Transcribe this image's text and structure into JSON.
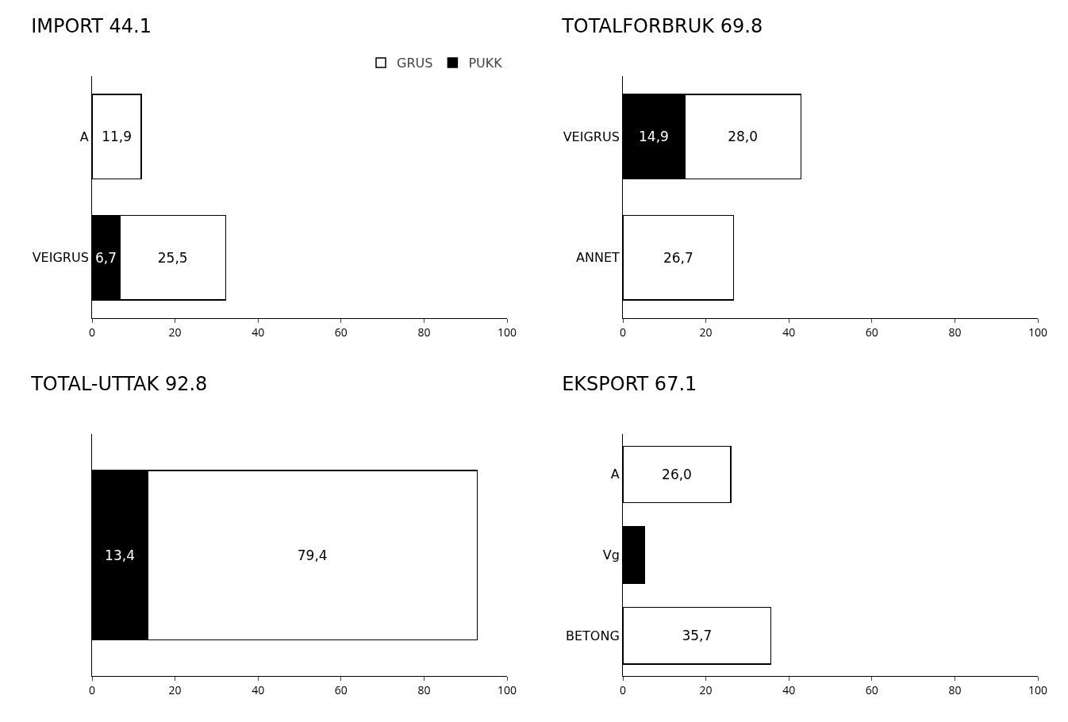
{
  "chart_data": [
    {
      "type": "bar",
      "orientation": "horizontal",
      "stacked": true,
      "title": "IMPORT 44.1",
      "legend": "top right",
      "categories": [
        "A",
        "VEIGRUS"
      ],
      "xlim": [
        0,
        100
      ],
      "xticks": [
        0,
        20,
        40,
        60,
        80,
        100
      ],
      "series": [
        {
          "name": "PUKK",
          "color": "#000000",
          "values": [
            null,
            6.7
          ],
          "value_labels": [
            null,
            "6,7"
          ]
        },
        {
          "name": "GRUS",
          "color": "#ffffff",
          "values": [
            11.9,
            25.5
          ],
          "value_labels": [
            "11,9",
            "25,5"
          ]
        }
      ]
    },
    {
      "type": "bar",
      "orientation": "horizontal",
      "stacked": true,
      "title": "TOTALFORBRUK 69.8",
      "categories": [
        "VEIGRUS",
        "ANNET"
      ],
      "xlim": [
        0,
        100
      ],
      "xticks": [
        0,
        20,
        40,
        60,
        80,
        100
      ],
      "series": [
        {
          "color": "#000000",
          "values": [
            14.9,
            null
          ],
          "value_labels": [
            "14,9",
            null
          ]
        },
        {
          "color": "#ffffff",
          "values": [
            28.0,
            26.7
          ],
          "value_labels": [
            "28,0",
            "26,7"
          ]
        }
      ]
    },
    {
      "type": "bar",
      "orientation": "horizontal",
      "stacked": true,
      "title": "TOTAL-UTTAK 92.8",
      "categories": [
        null
      ],
      "xlim": [
        0,
        100
      ],
      "xticks": [
        0,
        20,
        40,
        60,
        80,
        100
      ],
      "series": [
        {
          "color": "#000000",
          "values": [
            13.4
          ],
          "value_labels": [
            "13,4"
          ]
        },
        {
          "color": "#ffffff",
          "values": [
            79.4
          ],
          "value_labels": [
            "79,4"
          ]
        }
      ]
    },
    {
      "type": "bar",
      "orientation": "horizontal",
      "stacked": true,
      "title": "EKSPORT 67.1",
      "categories": [
        "A",
        "Vg",
        "BETONG"
      ],
      "xlim": [
        0,
        100
      ],
      "xticks": [
        0,
        20,
        40,
        60,
        80,
        100
      ],
      "series": [
        {
          "color": "#000000",
          "values": [
            null,
            5.2,
            null
          ],
          "value_labels": [
            null,
            null,
            null
          ]
        },
        {
          "color": "#ffffff",
          "values": [
            26.0,
            null,
            35.7
          ],
          "value_labels": [
            "26,0",
            null,
            "35,7"
          ]
        }
      ]
    }
  ]
}
